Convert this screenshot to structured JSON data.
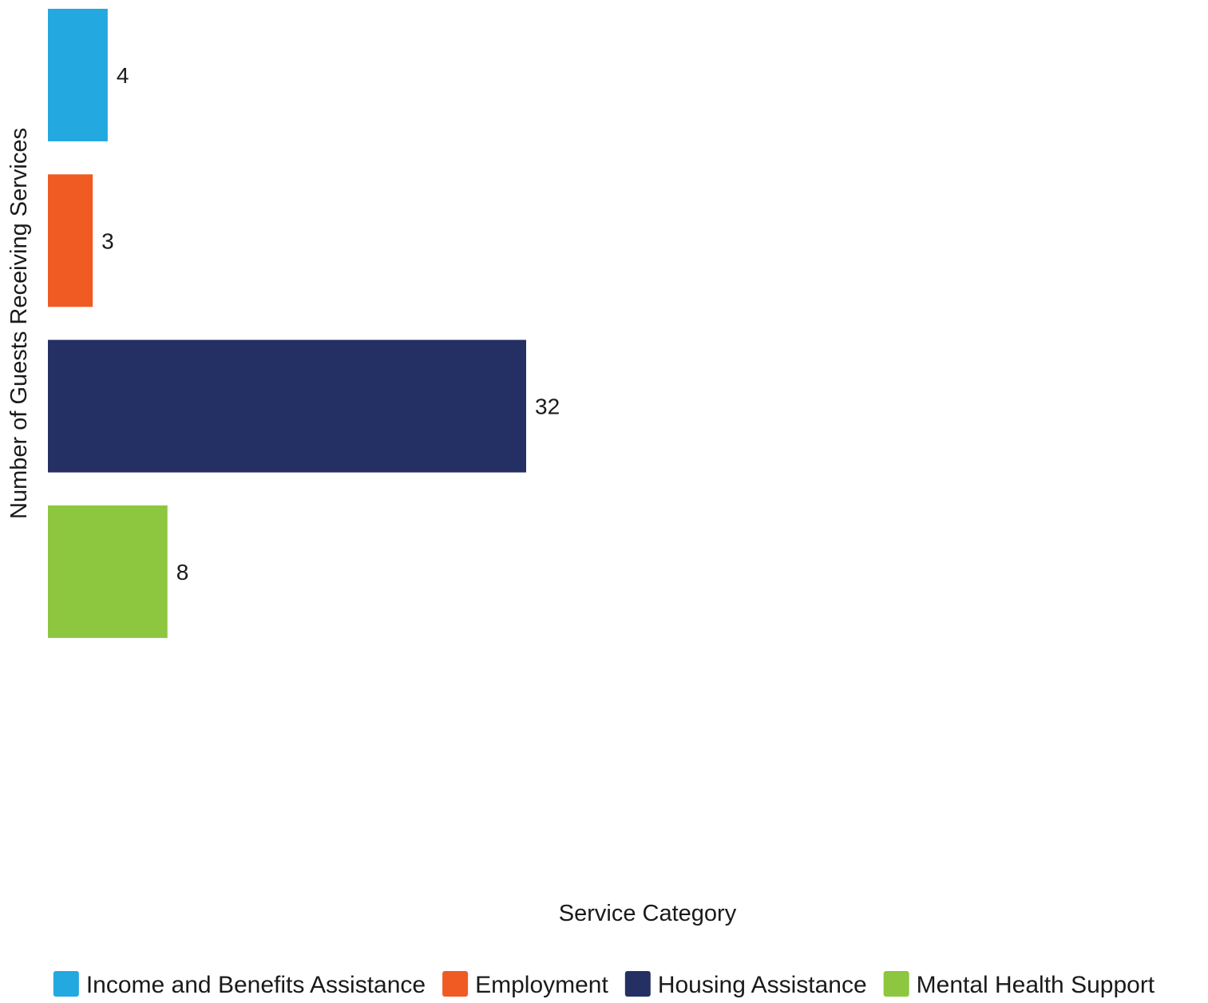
{
  "chart_data": {
    "type": "bar",
    "orientation": "horizontal",
    "categories": [
      "Income and Benefits Assistance",
      "Employment",
      "Housing Assistance",
      "Mental Health Support"
    ],
    "values": [
      4,
      3,
      32,
      8
    ],
    "colors": [
      "#23a8e0",
      "#f05a23",
      "#243064",
      "#8dc63f"
    ],
    "xlabel": "Service Category",
    "ylabel": "Number of Guests Receiving Services",
    "xlim": [
      0,
      32
    ],
    "grid": false,
    "legend_position": "bottom",
    "data_labels": true
  }
}
